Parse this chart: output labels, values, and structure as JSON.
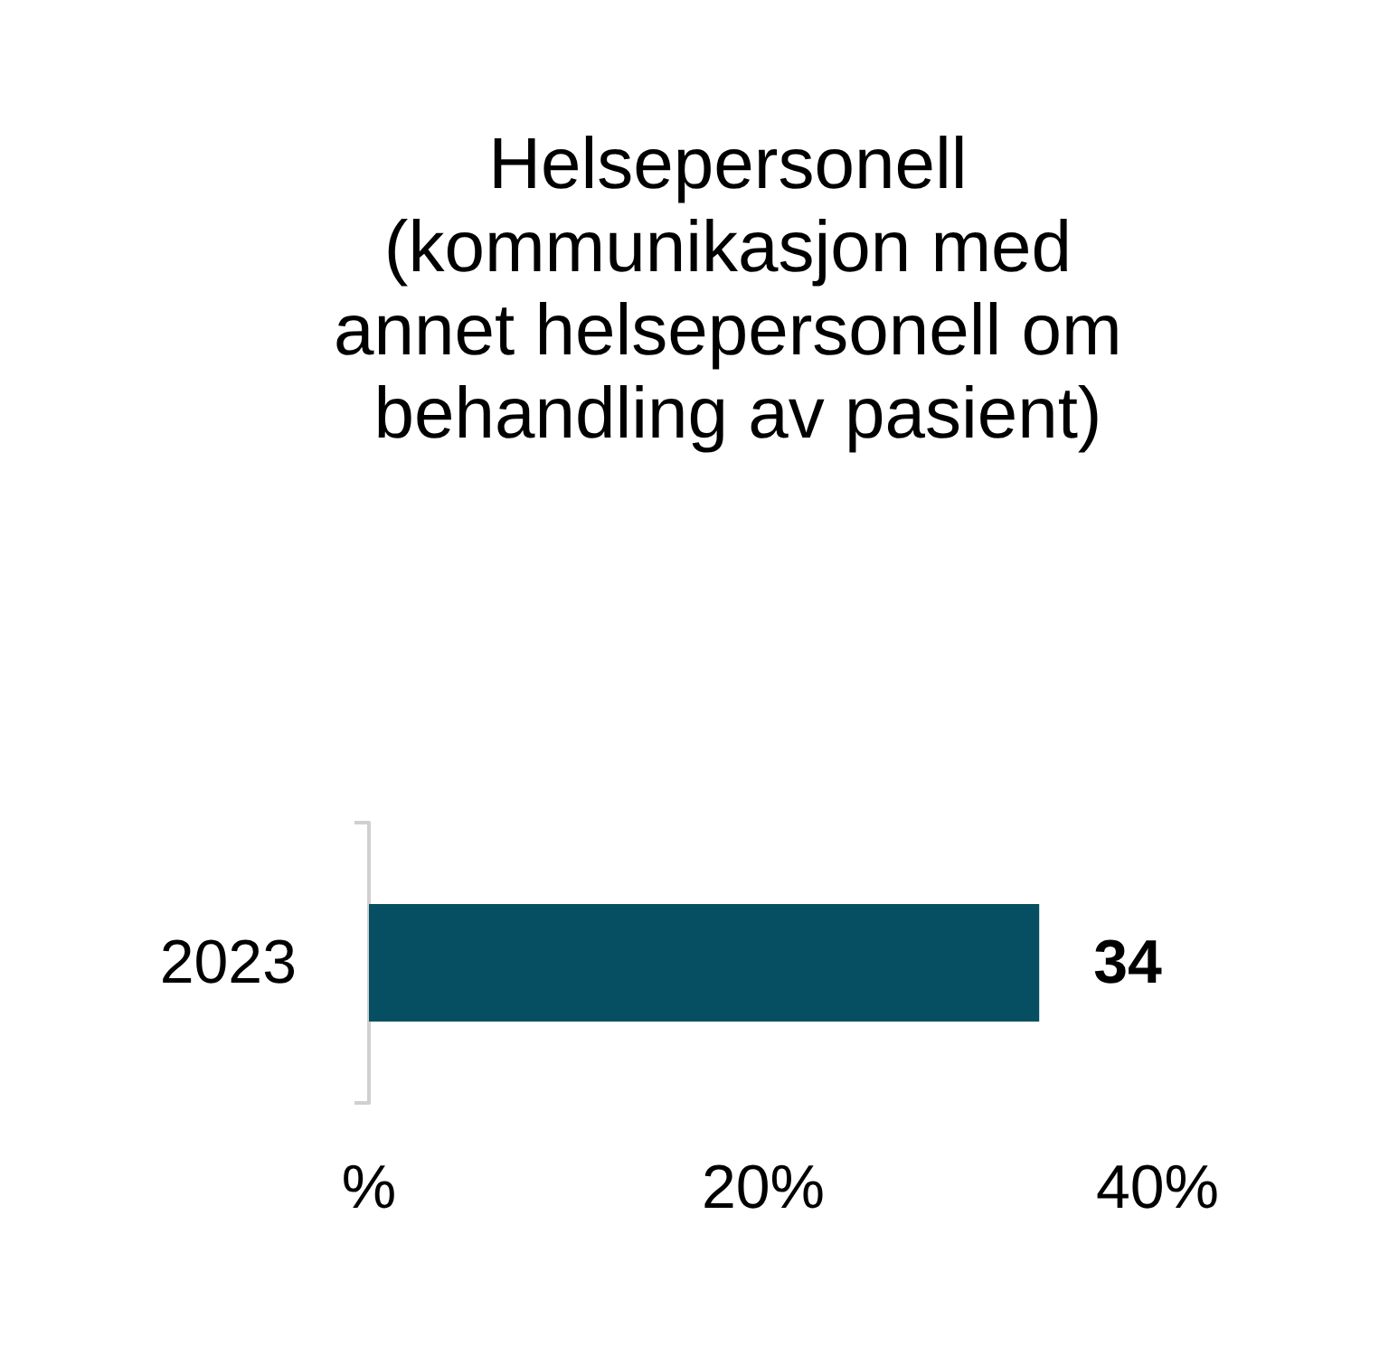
{
  "chart_data": {
    "type": "bar",
    "orientation": "horizontal",
    "title": "Helsepersonell (kommunikasjon med annet helsepersonell om behandling av pasient)",
    "categories": [
      "2023"
    ],
    "values": [
      34
    ],
    "color": "#064f63",
    "xlim": [
      0,
      40
    ],
    "xticks": [
      {
        "value": 0,
        "label": "%"
      },
      {
        "value": 20,
        "label": "20%"
      },
      {
        "value": 40,
        "label": "40%"
      }
    ],
    "data_labels": true
  }
}
